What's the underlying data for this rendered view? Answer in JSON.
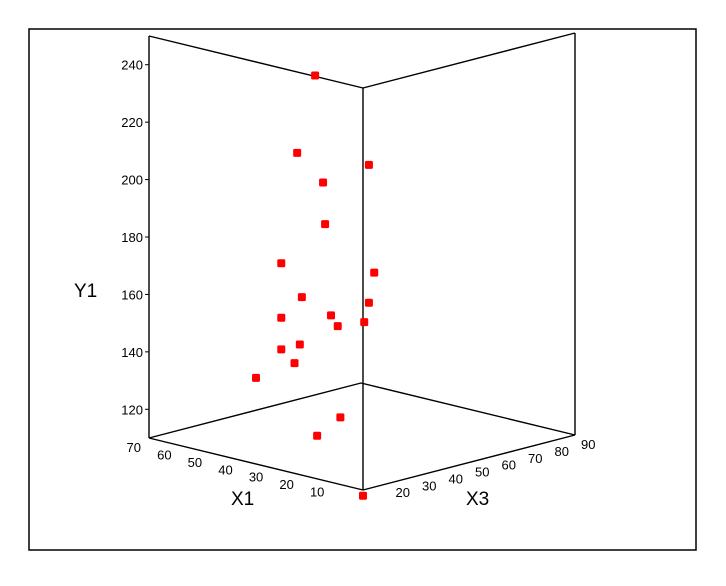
{
  "chart_data": {
    "type": "scatter",
    "projection": "3d",
    "title": "",
    "axes": {
      "x": {
        "label": "X1",
        "ticks": [
          10,
          20,
          30,
          40,
          50,
          60,
          70
        ],
        "range": [
          0,
          70
        ]
      },
      "y": {
        "label": "Y1",
        "ticks": [
          120,
          140,
          160,
          180,
          200,
          220,
          240
        ],
        "range": [
          110,
          250
        ]
      },
      "z": {
        "label": "X3",
        "ticks": [
          20,
          30,
          40,
          50,
          60,
          70,
          80,
          90
        ],
        "range": [
          10,
          90
        ]
      }
    },
    "grid": false,
    "legend": "none",
    "colors": {
      "frame": "#000000",
      "points": "#ff0000"
    },
    "points": [
      {
        "x1": 20,
        "x3": 15,
        "y1": 248
      },
      {
        "x1": 25,
        "x3": 14,
        "y1": 220
      },
      {
        "x1": 5,
        "x3": 18,
        "y1": 220
      },
      {
        "x1": 20,
        "x3": 18,
        "y1": 210
      },
      {
        "x1": 15,
        "x3": 13,
        "y1": 198
      },
      {
        "x1": 25,
        "x3": 8,
        "y1": 183
      },
      {
        "x1": 5,
        "x3": 20,
        "y1": 182
      },
      {
        "x1": 5,
        "x3": 18,
        "y1": 172
      },
      {
        "x1": 20,
        "x3": 10,
        "y1": 172
      },
      {
        "x1": 25,
        "x3": 8,
        "y1": 164
      },
      {
        "x1": 10,
        "x3": 12,
        "y1": 164
      },
      {
        "x1": 20,
        "x3": 21,
        "y1": 163
      },
      {
        "x1": 10,
        "x3": 22,
        "y1": 163
      },
      {
        "x1": 25,
        "x3": 8,
        "y1": 153
      },
      {
        "x1": 25,
        "x3": 15,
        "y1": 153
      },
      {
        "x1": 25,
        "x3": 13,
        "y1": 147
      },
      {
        "x1": 35,
        "x3": 10,
        "y1": 140
      },
      {
        "x1": 10,
        "x3": 13,
        "y1": 132
      },
      {
        "x1": 15,
        "x3": 10,
        "y1": 125
      },
      {
        "x1": 0,
        "x3": 10,
        "y1": 108
      }
    ]
  }
}
